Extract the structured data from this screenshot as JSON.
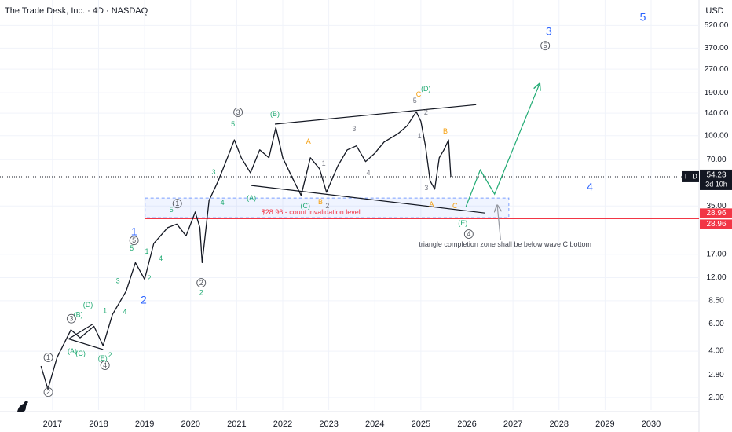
{
  "chart_data": {
    "type": "line",
    "title": "The Trade Desk, Inc. · 4D · NASDAQ",
    "y_unit": "USD",
    "log_scale": true,
    "xlim": [
      2015.86,
      2031.04
    ],
    "ylim": [
      1.66,
      760
    ],
    "xticks": [
      2017,
      2018,
      2019,
      2020,
      2021,
      2022,
      2023,
      2024,
      2025,
      2026,
      2027,
      2028,
      2029,
      2030
    ],
    "yticks": [
      {
        "value": 2,
        "label": "2.00"
      },
      {
        "value": 2.8,
        "label": "2.80"
      },
      {
        "value": 4,
        "label": "4.00"
      },
      {
        "value": 6,
        "label": "6.00"
      },
      {
        "value": 8.5,
        "label": "8.50"
      },
      {
        "value": 12,
        "label": "12.00"
      },
      {
        "value": 17,
        "label": "17.00"
      },
      {
        "value": 35,
        "label": "35.00"
      },
      {
        "value": 70,
        "label": "70.00"
      },
      {
        "value": 100,
        "label": "100.00"
      },
      {
        "value": 140,
        "label": "140.00"
      },
      {
        "value": 190,
        "label": "190.00"
      },
      {
        "value": 270,
        "label": "270.00"
      },
      {
        "value": 370,
        "label": "370.00"
      },
      {
        "value": 520,
        "label": "520.00"
      }
    ],
    "x": [
      2016.75,
      2016.9,
      2017.1,
      2017.4,
      2017.6,
      2017.9,
      2018.1,
      2018.3,
      2018.6,
      2018.8,
      2019.0,
      2019.2,
      2019.5,
      2019.7,
      2019.9,
      2020.1,
      2020.2,
      2020.25,
      2020.4,
      2020.6,
      2020.8,
      2020.95,
      2021.1,
      2021.3,
      2021.5,
      2021.7,
      2021.85,
      2022.0,
      2022.2,
      2022.4,
      2022.6,
      2022.8,
      2022.95,
      2023.2,
      2023.4,
      2023.6,
      2023.8,
      2024.0,
      2024.2,
      2024.5,
      2024.7,
      2024.9,
      2025.0,
      2025.1,
      2025.2,
      2025.3,
      2025.4,
      2025.5,
      2025.6,
      2025.65
    ],
    "series": [
      {
        "name": "TTD",
        "color": "#131722",
        "values": [
          3.2,
          2.27,
          3.64,
          5.5,
          4.88,
          5.8,
          4.34,
          6.9,
          9.8,
          15,
          11.7,
          20,
          25.3,
          26.7,
          22.4,
          32,
          25.3,
          15,
          38,
          51,
          72,
          94,
          72,
          57.4,
          81,
          72,
          113,
          72,
          54,
          41,
          72,
          61,
          43,
          64,
          81,
          86,
          68,
          77,
          91,
          103,
          116,
          143,
          124,
          86,
          51,
          45,
          72,
          81,
          94,
          54.23
        ]
      }
    ],
    "countdown": "3d 10h",
    "last_price_color": "#131722",
    "invalidation": {
      "value": 28.96,
      "color": "#f23645"
    },
    "zone": {
      "x": [
        2019.01,
        2026.91
      ],
      "y": [
        29.4,
        39.4
      ],
      "color": "#2962ff"
    },
    "trendlines": [
      {
        "color": "#131722",
        "x": [
          2021.83,
          2026.2
        ],
        "y": [
          119,
          159
        ]
      },
      {
        "color": "#131722",
        "x": [
          2021.32,
          2026.39
        ],
        "y": [
          47.6,
          31.5
        ]
      },
      {
        "color": "#131722",
        "x": [
          2017.35,
          2017.88
        ],
        "y": [
          4.8,
          6.0
        ]
      },
      {
        "color": "#131722",
        "x": [
          2017.35,
          2018.1
        ],
        "y": [
          4.8,
          4.1
        ]
      },
      {
        "color": "#22ab74",
        "x": [
          2025.98,
          2026.29,
          2026.6,
          2027.57
        ],
        "y": [
          34.7,
          60,
          41.8,
          215
        ],
        "arrow": true
      },
      {
        "color": "#9598a1",
        "x": [
          2026.73,
          2026.66
        ],
        "y": [
          21.2,
          35
        ],
        "arrow": true
      }
    ],
    "annotations": [
      {
        "text": "1",
        "x": 2018.77,
        "y": 23.8,
        "color": "#2962ff",
        "style": "major"
      },
      {
        "text": "2",
        "x": 2018.98,
        "y": 8.57,
        "color": "#2962ff",
        "style": "major"
      },
      {
        "text": "3",
        "x": 2027.78,
        "y": 474,
        "color": "#2962ff",
        "style": "major"
      },
      {
        "text": "4",
        "x": 2028.67,
        "y": 46.5,
        "color": "#2962ff",
        "style": "major"
      },
      {
        "text": "5",
        "x": 2029.82,
        "y": 586,
        "color": "#2962ff",
        "style": "major"
      },
      {
        "text": "(B)",
        "x": 2021.83,
        "y": 138,
        "color": "#22ab74",
        "style": "minor"
      },
      {
        "text": "(D)",
        "x": 2025.11,
        "y": 202,
        "color": "#22ab74",
        "style": "minor"
      },
      {
        "text": "(A)",
        "x": 2021.32,
        "y": 39.4,
        "color": "#22ab74",
        "style": "minor"
      },
      {
        "text": "(C)",
        "x": 2022.49,
        "y": 35,
        "color": "#22ab74",
        "style": "minor"
      },
      {
        "text": "(E)",
        "x": 2025.91,
        "y": 27,
        "color": "#22ab74",
        "style": "minor"
      },
      {
        "text": "A",
        "x": 2022.56,
        "y": 92,
        "color": "#f59e0b",
        "style": "minor"
      },
      {
        "text": "B",
        "x": 2022.82,
        "y": 37.2,
        "color": "#f59e0b",
        "style": "minor"
      },
      {
        "text": "C",
        "x": 2024.95,
        "y": 186,
        "color": "#f59e0b",
        "style": "minor"
      },
      {
        "text": "B",
        "x": 2025.53,
        "y": 107,
        "color": "#f59e0b",
        "style": "minor"
      },
      {
        "text": "A",
        "x": 2025.23,
        "y": 35.9,
        "color": "#f59e0b",
        "style": "minor"
      },
      {
        "text": "C",
        "x": 2025.74,
        "y": 35,
        "color": "#f59e0b",
        "style": "minor"
      },
      {
        "text": "3",
        "x": 2023.55,
        "y": 111,
        "color": "#787b86",
        "style": "minor"
      },
      {
        "text": "1",
        "x": 2022.89,
        "y": 66,
        "color": "#787b86",
        "style": "minor"
      },
      {
        "text": "4",
        "x": 2023.86,
        "y": 57.4,
        "color": "#787b86",
        "style": "minor"
      },
      {
        "text": "5",
        "x": 2024.87,
        "y": 169,
        "color": "#787b86",
        "style": "minor"
      },
      {
        "text": "2",
        "x": 2025.11,
        "y": 142,
        "color": "#787b86",
        "style": "minor"
      },
      {
        "text": "1",
        "x": 2024.97,
        "y": 99.6,
        "color": "#787b86",
        "style": "minor"
      },
      {
        "text": "3",
        "x": 2025.12,
        "y": 46,
        "color": "#787b86",
        "style": "minor"
      },
      {
        "text": "2",
        "x": 2022.97,
        "y": 35,
        "color": "#787b86",
        "style": "minor"
      },
      {
        "text": "5",
        "x": 2020.92,
        "y": 119,
        "color": "#22ab74",
        "style": "minor"
      },
      {
        "text": "3",
        "x": 2020.5,
        "y": 58,
        "color": "#22ab74",
        "style": "minor"
      },
      {
        "text": "4",
        "x": 2020.69,
        "y": 36.8,
        "color": "#22ab74",
        "style": "minor"
      },
      {
        "text": "5",
        "x": 2019.58,
        "y": 33,
        "color": "#22ab74",
        "style": "minor"
      },
      {
        "text": "5",
        "x": 2018.72,
        "y": 18.6,
        "color": "#22ab74",
        "style": "minor"
      },
      {
        "text": "1",
        "x": 2019.05,
        "y": 17.7,
        "color": "#22ab74",
        "style": "minor"
      },
      {
        "text": "4",
        "x": 2019.35,
        "y": 16,
        "color": "#22ab74",
        "style": "minor"
      },
      {
        "text": "2",
        "x": 2019.1,
        "y": 11.9,
        "color": "#22ab74",
        "style": "minor"
      },
      {
        "text": "3",
        "x": 2018.42,
        "y": 11.4,
        "color": "#22ab74",
        "style": "minor"
      },
      {
        "text": "4",
        "x": 2018.57,
        "y": 7.2,
        "color": "#22ab74",
        "style": "minor"
      },
      {
        "text": "1",
        "x": 2018.14,
        "y": 7.3,
        "color": "#22ab74",
        "style": "minor"
      },
      {
        "text": "(D)",
        "x": 2017.77,
        "y": 8.0,
        "color": "#22ab74",
        "style": "minor"
      },
      {
        "text": "(B)",
        "x": 2017.56,
        "y": 6.9,
        "color": "#22ab74",
        "style": "minor"
      },
      {
        "text": "(A)",
        "x": 2017.43,
        "y": 4.0,
        "color": "#22ab74",
        "style": "minor"
      },
      {
        "text": "(C)",
        "x": 2017.61,
        "y": 3.86,
        "color": "#22ab74",
        "style": "minor"
      },
      {
        "text": "(E)",
        "x": 2018.09,
        "y": 3.6,
        "color": "#22ab74",
        "style": "minor"
      },
      {
        "text": "2",
        "x": 2018.25,
        "y": 3.77,
        "color": "#22ab74",
        "style": "minor"
      },
      {
        "text": "2",
        "x": 2020.23,
        "y": 9.6,
        "color": "#22ab74",
        "style": "minor"
      },
      {
        "text": "3",
        "x": 2021.03,
        "y": 142,
        "color": "#555860",
        "style": "circled"
      },
      {
        "text": "1",
        "x": 2019.71,
        "y": 36.3,
        "color": "#555860",
        "style": "circled"
      },
      {
        "text": "5",
        "x": 2018.77,
        "y": 20.9,
        "color": "#555860",
        "style": "circled"
      },
      {
        "text": "2",
        "x": 2020.23,
        "y": 11.1,
        "color": "#555860",
        "style": "circled"
      },
      {
        "text": "3",
        "x": 2017.41,
        "y": 6.5,
        "color": "#555860",
        "style": "circled"
      },
      {
        "text": "1",
        "x": 2016.91,
        "y": 3.64,
        "color": "#555860",
        "style": "circled"
      },
      {
        "text": "2",
        "x": 2016.91,
        "y": 2.17,
        "color": "#555860",
        "style": "circled"
      },
      {
        "text": "4",
        "x": 2018.14,
        "y": 3.24,
        "color": "#555860",
        "style": "circled"
      },
      {
        "text": "4",
        "x": 2026.04,
        "y": 23,
        "color": "#555860",
        "style": "circled"
      },
      {
        "text": "5",
        "x": 2027.7,
        "y": 384,
        "color": "#555860",
        "style": "circled"
      },
      {
        "text": "$28.96 - count invalidation level",
        "x": 2022.61,
        "y": 32,
        "color": "#f23645",
        "style": "note"
      },
      {
        "text": "triangle completion zone shall be below wave C bottom",
        "x": 2026.83,
        "y": 19.7,
        "color": "#434651",
        "style": "note"
      }
    ]
  }
}
